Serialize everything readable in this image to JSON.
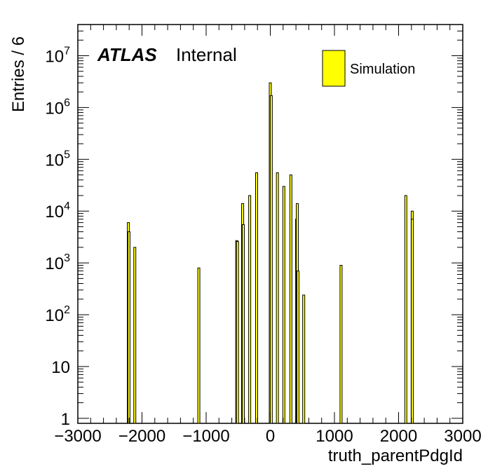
{
  "chart_data": {
    "type": "bar",
    "title": "",
    "xlabel": "truth_parentPdgId",
    "ylabel": "Entries / 6",
    "xlim": [
      -3000,
      3000
    ],
    "ylim": [
      0.8,
      40000000
    ],
    "log_y": true,
    "bin_width": 6,
    "x_ticks": [
      -3000,
      -2000,
      -1000,
      0,
      1000,
      2000,
      3000
    ],
    "x_tick_labels": [
      "−3000",
      "−2000",
      "−1000",
      "0",
      "1000",
      "2000",
      "3000"
    ],
    "y_ticks": [
      1,
      10,
      100,
      1000,
      10000,
      100000,
      1000000,
      10000000
    ],
    "y_tick_labels": [
      {
        "base": "1",
        "exp": ""
      },
      {
        "base": "10",
        "exp": ""
      },
      {
        "base": "10",
        "exp": "2"
      },
      {
        "base": "10",
        "exp": "3"
      },
      {
        "base": "10",
        "exp": "4"
      },
      {
        "base": "10",
        "exp": "5"
      },
      {
        "base": "10",
        "exp": "6"
      },
      {
        "base": "10",
        "exp": "7"
      }
    ],
    "grid": false,
    "legend_position": "top-right",
    "colors": {
      "fill": "#ffff00",
      "line": "#000000"
    },
    "series": [
      {
        "name": "Simulation",
        "x": [
          -2212,
          -2203,
          -2112,
          -1114,
          -523,
          -511,
          -431,
          -421,
          -321,
          -213,
          0,
          15,
          111,
          211,
          321,
          411,
          421,
          431,
          521,
          1103,
          2112,
          2212,
          2214
        ],
        "values": [
          6000,
          4000,
          2000,
          800,
          2700,
          2600,
          14000,
          5500,
          20000,
          55000,
          3000000,
          1700000,
          55000,
          30000,
          50000,
          7000,
          14000,
          700,
          240,
          900,
          20000,
          10000,
          7000
        ]
      }
    ]
  },
  "annotations": {
    "atlas": "ATLAS",
    "internal": "Internal"
  }
}
